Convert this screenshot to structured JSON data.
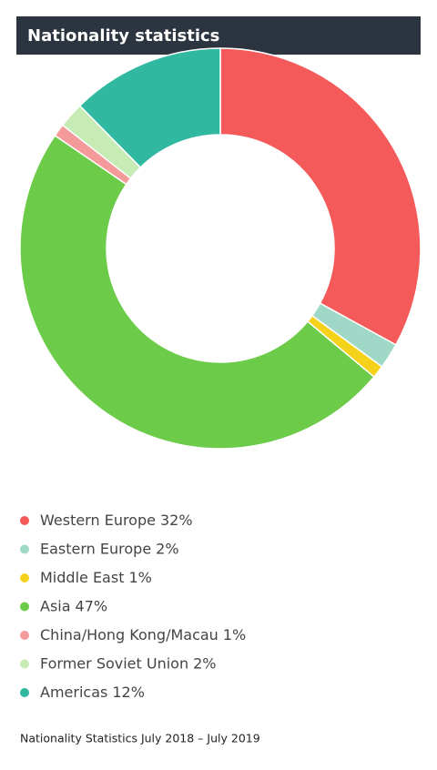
{
  "chart_data": {
    "type": "donut",
    "title": "Nationality statistics",
    "categories": [
      "Western Europe",
      "Eastern Europe",
      "Middle East",
      "Asia",
      "China/Hong Kong/Macau",
      "Former Soviet Union",
      "Americas"
    ],
    "values": [
      32,
      2,
      1,
      47,
      1,
      2,
      12
    ],
    "value_labels": [
      "32%",
      "2%",
      "1%",
      "47%",
      "1%",
      "2%",
      "12%"
    ],
    "colors": [
      "#f55a5a",
      "#9fd8c6",
      "#f5d21a",
      "#6ccb48",
      "#f59a9a",
      "#c6ebb5",
      "#30b9a0"
    ],
    "note": "Nationality Statistics July 2018 – July 2019"
  }
}
